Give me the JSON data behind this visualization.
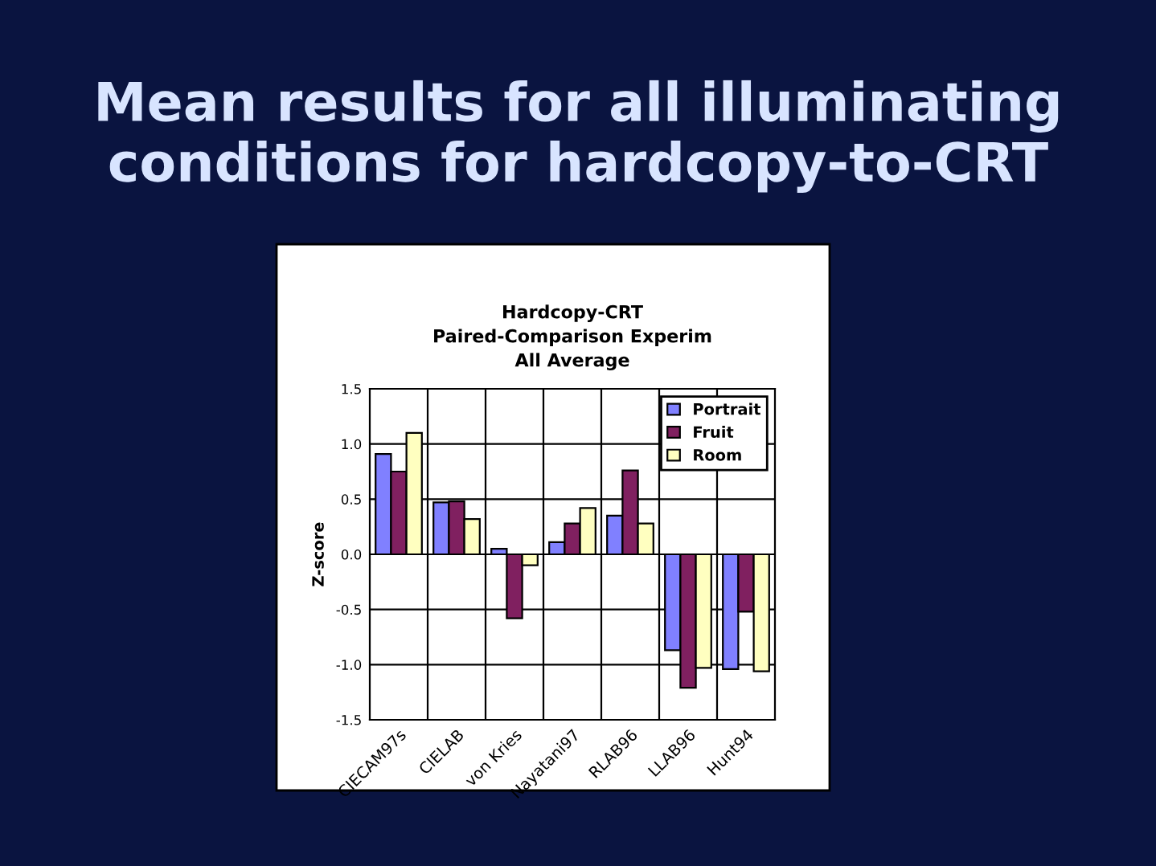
{
  "chart_data": {
    "type": "bar",
    "title": "Hardcopy-CRT\nPaired-Comparison Experim\nAll Average",
    "ylabel": "Z-score",
    "annotations": [
      "Mean results for all illuminating conditions for hardcopy-to-CRT"
    ],
    "categories": [
      "CIECAM97s",
      "CIELAB",
      "von Kries",
      "Nayatani97",
      "RLAB96",
      "LLAB96",
      "Hunt94"
    ],
    "series": [
      {
        "name": "Portrait",
        "color": "#8080ff",
        "values": [
          0.91,
          0.47,
          0.05,
          0.11,
          0.35,
          -0.87,
          -1.04
        ]
      },
      {
        "name": "Fruit",
        "color": "#802060",
        "values": [
          0.75,
          0.48,
          -0.58,
          0.28,
          0.76,
          -1.21,
          -0.52
        ]
      },
      {
        "name": "Room",
        "color": "#ffffc0",
        "values": [
          1.1,
          0.32,
          -0.1,
          0.42,
          0.28,
          -1.03,
          -1.06
        ]
      }
    ],
    "ylim": [
      -1.5,
      1.5
    ],
    "yticks": [
      {
        "value": -1.5,
        "label": "-1.5"
      },
      {
        "value": -1.0,
        "label": "-1.0"
      },
      {
        "value": -0.5,
        "label": "-0.5"
      },
      {
        "value": 0,
        "label": "0.0"
      },
      {
        "value": 0.5,
        "label": "0.5"
      },
      {
        "value": 1.0,
        "label": "1.0"
      },
      {
        "value": 1.5,
        "label": "1.5"
      }
    ],
    "grid": true,
    "legend": "top right"
  }
}
